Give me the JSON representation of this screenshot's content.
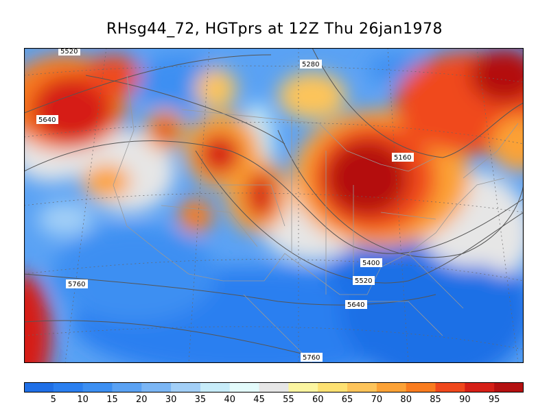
{
  "title": "RHsg44_72, HGTprs at 12Z Thu 26jan1978",
  "colorbar": {
    "labels": [
      "5",
      "10",
      "15",
      "20",
      "30",
      "35",
      "40",
      "45",
      "55",
      "60",
      "65",
      "70",
      "80",
      "85",
      "90",
      "95"
    ],
    "colors": [
      "#1f6fe6",
      "#2a7ff0",
      "#3c8ff2",
      "#5aa2f4",
      "#7bb6f5",
      "#a2cff7",
      "#c7ecf9",
      "#e3fbfb",
      "#e6e6e6",
      "#fbf5a0",
      "#fde172",
      "#fdc45a",
      "#fca236",
      "#f97c1f",
      "#f0481c",
      "#d61f16",
      "#b41010"
    ]
  },
  "contour_labels": [
    "5520",
    "5640",
    "5280",
    "5160",
    "5400",
    "5520",
    "5640",
    "5760",
    "5760"
  ],
  "colors": {
    "background": "#ffffff",
    "contour": "#555555",
    "boundary": "#999999"
  }
}
